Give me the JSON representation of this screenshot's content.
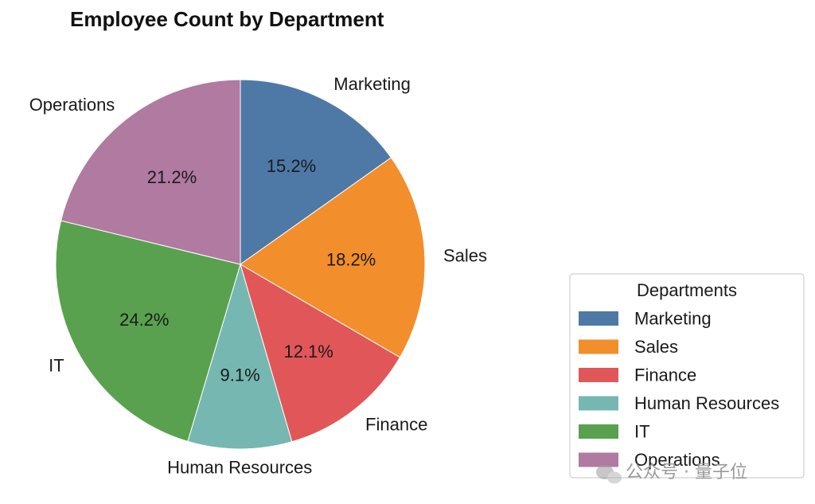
{
  "chart_data": {
    "type": "pie",
    "title": "Employee Count by Department",
    "categories": [
      "Marketing",
      "Sales",
      "Finance",
      "Human Resources",
      "IT",
      "Operations"
    ],
    "values": [
      15.2,
      18.2,
      12.1,
      9.1,
      24.2,
      21.2
    ],
    "value_labels": [
      "15.2%",
      "18.2%",
      "12.1%",
      "9.1%",
      "24.2%",
      "21.2%"
    ],
    "colors": [
      "#4e79a7",
      "#f28e2b",
      "#e15759",
      "#76b7b2",
      "#59a14f",
      "#b07aa1"
    ],
    "start_angle_deg": 90,
    "direction": "clockwise",
    "legend": {
      "title": "Departments",
      "placement": "lower-right",
      "entries": [
        "Marketing",
        "Sales",
        "Finance",
        "Human Resources",
        "IT",
        "Operations"
      ]
    }
  },
  "watermark": {
    "text": "公众号 · 量子位",
    "icon": "wechat-icon"
  }
}
